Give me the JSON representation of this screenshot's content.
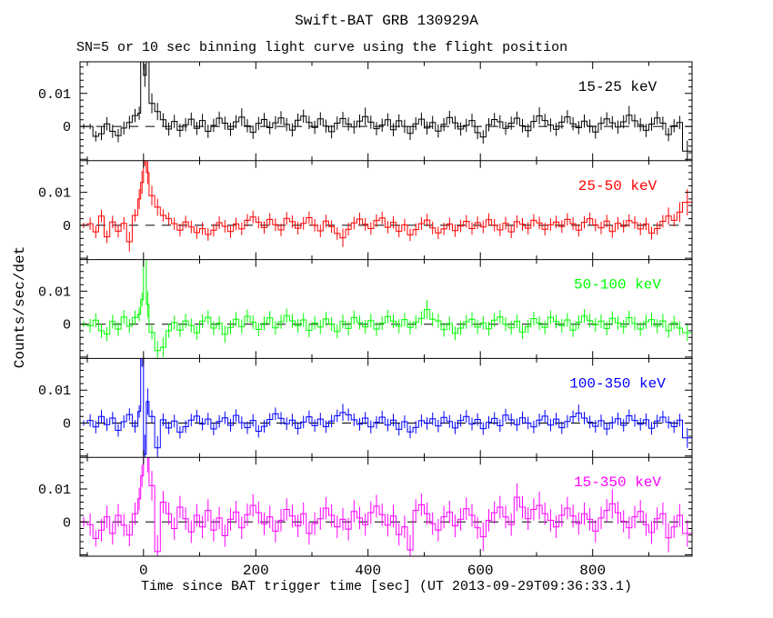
{
  "figure": {
    "title": "Swift-BAT GRB 130929A",
    "subtitle": "SN=5 or 10 sec binning light curve using the flight position",
    "background": "#ffffff",
    "frame_color": "#000000"
  },
  "chart_data": {
    "type": "line",
    "subtype": "step-histogram-with-errorbars",
    "title": "Swift-BAT GRB 130929A",
    "subtitle": "SN=5 or 10 sec binning light curve using the flight position",
    "xlabel": "Time since BAT trigger time [sec] (UT 2013-09-29T09:36:33.1)",
    "ylabel": "Counts/sec/det",
    "grid": false,
    "legend_position": "inside-top-right-of-each-panel",
    "xlim": [
      -113,
      977
    ],
    "ylim": [
      -0.0104,
      0.0196
    ],
    "x_major_ticks": [
      0,
      200,
      400,
      600,
      800
    ],
    "x_minor_step": 100,
    "y_labeled_ticks": [
      {
        "value": 0.01,
        "label": "0.01"
      },
      {
        "value": 0,
        "label": "0"
      }
    ],
    "y_minor_step": 0.002,
    "zero_line": {
      "color": "#000000",
      "dash": [
        10,
        8
      ]
    },
    "unit_scale": 0.001,
    "bin_edges": [
      -113,
      -100,
      -90,
      -80,
      -70,
      -60,
      -50,
      -40,
      -30,
      -20,
      -10,
      -5,
      0,
      5,
      10,
      20,
      30,
      40,
      50,
      60,
      70,
      80,
      90,
      100,
      110,
      120,
      130,
      140,
      150,
      160,
      170,
      180,
      190,
      200,
      210,
      220,
      230,
      240,
      250,
      260,
      270,
      280,
      290,
      300,
      310,
      320,
      330,
      340,
      350,
      360,
      370,
      380,
      390,
      400,
      410,
      420,
      430,
      440,
      450,
      460,
      470,
      480,
      490,
      500,
      510,
      520,
      530,
      540,
      550,
      560,
      570,
      580,
      590,
      600,
      610,
      620,
      630,
      640,
      650,
      660,
      670,
      680,
      690,
      700,
      710,
      720,
      730,
      740,
      750,
      760,
      770,
      780,
      790,
      800,
      810,
      820,
      830,
      840,
      850,
      860,
      870,
      880,
      890,
      900,
      910,
      920,
      930,
      940,
      950,
      960,
      977
    ],
    "series": [
      {
        "name": "15-25 keV",
        "color": "#000000",
        "err_default": 2.0,
        "err_overrides": {
          "0": 0.8,
          "1": 0.8,
          "2": 1.6,
          "11": 4,
          "12": 3.5,
          "13": 4,
          "14": 3,
          "15": 2.6,
          "30": 2.7,
          "52": 2.7,
          "83": 2.6,
          "99": 2.8,
          "109": 3.2
        },
        "values": [
          0,
          0,
          -3,
          -2.2,
          0.8,
          -1.5,
          -2.8,
          -0.5,
          1.2,
          3.3,
          4.0,
          26,
          15.5,
          27,
          7.0,
          4.5,
          2.0,
          -0.8,
          1.5,
          -1.2,
          0.5,
          2.2,
          -0.6,
          1.8,
          -1.5,
          0.3,
          2.5,
          1.0,
          -0.9,
          1.4,
          2.8,
          0.2,
          -1.8,
          0.9,
          2.1,
          -0.4,
          1.1,
          2.6,
          0.6,
          -1.1,
          1.9,
          3.1,
          1.2,
          -0.3,
          2.3,
          0.1,
          -1.6,
          1.0,
          2.4,
          0.7,
          -0.2,
          1.6,
          3.0,
          1.3,
          -0.7,
          0.4,
          2.0,
          -1.0,
          1.7,
          0.0,
          -2.1,
          0.8,
          2.2,
          -0.5,
          1.2,
          -1.4,
          0.6,
          2.7,
          1.1,
          -0.8,
          0.3,
          1.8,
          -1.9,
          -3.2,
          0.5,
          2.1,
          1.4,
          -0.6,
          1.0,
          2.5,
          0.2,
          -1.3,
          1.5,
          3.2,
          1.8,
          0.4,
          -0.9,
          1.3,
          2.9,
          0.8,
          -0.4,
          1.6,
          0.1,
          -1.7,
          0.9,
          2.3,
          1.1,
          -0.2,
          1.4,
          3.4,
          1.7,
          0.5,
          -1.2,
          0.7,
          2.6,
          1.0,
          -2.5,
          0.2,
          1.2,
          -7.5
        ]
      },
      {
        "name": "25-50 keV",
        "color": "#ff0000",
        "err_default": 1.9,
        "err_overrides": {
          "0": 0.8,
          "8": 3,
          "10": 3,
          "11": 3.5,
          "12": 4,
          "13": 3.5,
          "14": 3,
          "15": 2.6,
          "48": 2.8,
          "106": 2.6,
          "108": 3,
          "109": 4
        },
        "values": [
          0,
          0.5,
          -2,
          2.8,
          -3.5,
          1.0,
          -1.8,
          0.6,
          -5.0,
          3.0,
          8.0,
          13.0,
          22.0,
          16.0,
          9.0,
          5.5,
          3.0,
          2.0,
          0.5,
          -1.5,
          1.0,
          -0.5,
          -2.2,
          -1.0,
          -2.8,
          -1.5,
          0.8,
          -0.3,
          -1.9,
          0.4,
          -1.1,
          1.5,
          2.5,
          0.9,
          -0.7,
          1.8,
          0.2,
          -1.4,
          2.1,
          1.1,
          -0.9,
          0.6,
          2.3,
          0.0,
          -1.7,
          1.3,
          -0.4,
          -2.5,
          -3.8,
          -1.2,
          0.7,
          1.9,
          0.3,
          -1.0,
          1.4,
          2.2,
          -0.6,
          0.9,
          -1.8,
          0.1,
          -2.9,
          -1.3,
          0.5,
          1.6,
          -0.8,
          -2.3,
          -1.1,
          0.4,
          -1.6,
          -0.2,
          1.2,
          -1.0,
          0.8,
          -0.5,
          1.7,
          0.0,
          -1.4,
          0.6,
          -2.0,
          1.1,
          0.3,
          -0.9,
          1.5,
          0.7,
          -1.2,
          0.2,
          1.0,
          -0.4,
          1.8,
          0.5,
          -1.5,
          0.9,
          2.0,
          0.1,
          -0.8,
          1.3,
          -1.9,
          0.6,
          -0.3,
          1.4,
          0.8,
          -1.1,
          0.4,
          -2.4,
          -1.0,
          1.2,
          2.8,
          1.5,
          4.0,
          7.0
        ]
      },
      {
        "name": "50-100 keV",
        "color": "#00ff00",
        "err_default": 2.1,
        "err_overrides": {
          "0": 0.9,
          "12": 5,
          "13": 4,
          "15": 3,
          "16": 3,
          "27": 2.6,
          "63": 2.9,
          "109": 2.5
        },
        "values": [
          0,
          -0.5,
          1.2,
          -2.0,
          -3.0,
          0.8,
          -1.5,
          2.2,
          -0.6,
          2.0,
          3.0,
          7.5,
          34.0,
          6.0,
          -2.5,
          -8.0,
          -7.0,
          -2.0,
          0.5,
          -1.8,
          1.0,
          -0.4,
          -2.6,
          0.9,
          2.1,
          -1.2,
          0.3,
          -3.1,
          -1.0,
          1.5,
          -0.7,
          2.4,
          0.6,
          -1.6,
          0.2,
          1.9,
          -1.1,
          0.7,
          2.6,
          1.0,
          -0.5,
          1.3,
          -1.9,
          0.4,
          -0.9,
          1.6,
          0.0,
          -2.2,
          0.8,
          -1.3,
          2.0,
          0.5,
          -0.8,
          1.1,
          -1.5,
          0.3,
          2.3,
          0.9,
          -0.6,
          1.4,
          -1.0,
          0.6,
          1.8,
          4.5,
          1.5,
          1.0,
          -1.7,
          0.2,
          -2.8,
          -1.2,
          0.7,
          1.5,
          -0.9,
          0.4,
          -1.4,
          1.2,
          2.2,
          0.0,
          -1.1,
          0.9,
          -2.4,
          -0.7,
          1.7,
          0.3,
          -1.0,
          2.1,
          0.8,
          -0.5,
          1.3,
          -1.8,
          0.6,
          2.5,
          1.1,
          -0.2,
          0.9,
          -1.3,
          1.8,
          0.4,
          -0.8,
          2.0,
          0.2,
          -1.5,
          0.7,
          1.4,
          -0.6,
          1.0,
          -2.0,
          0.5,
          -1.2,
          -2.6
        ]
      },
      {
        "name": "100-350 keV",
        "color": "#0000ff",
        "err_default": 1.9,
        "err_overrides": {
          "0": 0.8,
          "11": 8,
          "12": 6,
          "13": 4,
          "15": 3.5,
          "48": 2.6,
          "90": 2.6,
          "109": 3
        },
        "values": [
          0,
          0.8,
          -1.2,
          2.0,
          -0.5,
          1.5,
          -2.2,
          0.4,
          2.6,
          -1.0,
          3.5,
          25.0,
          -9.5,
          6.5,
          2.0,
          -7.5,
          1.0,
          -1.5,
          0.6,
          -2.8,
          -1.1,
          0.9,
          2.1,
          -0.3,
          1.2,
          -1.8,
          0.5,
          1.6,
          -0.7,
          2.3,
          0.1,
          -1.4,
          0.8,
          -2.5,
          -1.0,
          1.1,
          2.8,
          1.4,
          -0.2,
          0.9,
          -1.6,
          0.3,
          1.9,
          -0.8,
          1.2,
          -1.1,
          0.6,
          2.2,
          3.2,
          2.5,
          1.0,
          -0.4,
          1.5,
          -1.2,
          0.2,
          1.8,
          -0.6,
          0.9,
          -1.9,
          0.4,
          -2.7,
          -1.3,
          0.7,
          -0.1,
          1.3,
          -0.9,
          1.7,
          0.5,
          -1.5,
          0.8,
          2.0,
          -0.3,
          1.1,
          -1.7,
          0.2,
          1.4,
          -0.8,
          2.4,
          1.0,
          -0.5,
          1.6,
          0.0,
          -1.2,
          0.9,
          2.1,
          -0.6,
          1.2,
          -1.4,
          0.5,
          1.9,
          3.0,
          1.5,
          0.3,
          -1.0,
          0.7,
          -1.8,
          0.1,
          1.3,
          -0.7,
          2.2,
          0.8,
          -0.4,
          1.0,
          -1.6,
          0.6,
          1.8,
          0.2,
          -1.1,
          0.9,
          -4.5
        ]
      },
      {
        "name": "15-350 keV",
        "color": "#ff00ff",
        "err_default": 3.4,
        "err_overrides": {
          "0": 1.5,
          "2": 2.5,
          "12": 5,
          "13": 5,
          "14": 4.5,
          "15": 5,
          "60": 4.5,
          "73": 4.3,
          "79": 4.2,
          "83": 4.2,
          "96": 4.4,
          "106": 4.4,
          "109": 4
        },
        "values": [
          0,
          -0.8,
          -5.0,
          -2.5,
          1.5,
          -3.5,
          2.0,
          -1.0,
          -4.0,
          2.5,
          7.0,
          14.0,
          28.0,
          20.0,
          11.0,
          -9.0,
          6.0,
          2.5,
          -2.0,
          4.5,
          1.0,
          -3.0,
          2.0,
          -1.5,
          3.5,
          -2.5,
          1.2,
          -4.2,
          0.8,
          3.0,
          -1.8,
          2.2,
          5.0,
          2.8,
          -0.6,
          1.5,
          -2.8,
          0.5,
          3.8,
          1.8,
          -1.2,
          2.5,
          -3.5,
          -0.5,
          1.0,
          4.2,
          2.0,
          -1.5,
          0.8,
          -2.2,
          3.2,
          1.2,
          -0.8,
          2.8,
          4.8,
          2.2,
          -1.0,
          1.8,
          -3.8,
          -1.5,
          -8.5,
          3.5,
          5.2,
          2.5,
          -0.5,
          -2.5,
          1.5,
          3.0,
          -1.2,
          0.8,
          4.0,
          2.0,
          -1.8,
          -4.5,
          0.5,
          2.8,
          4.5,
          1.5,
          -0.8,
          7.5,
          4.5,
          1.0,
          3.8,
          5.0,
          2.5,
          0.5,
          -1.5,
          2.0,
          4.2,
          1.8,
          -0.5,
          2.5,
          0.8,
          -2.8,
          1.2,
          3.5,
          5.5,
          2.8,
          0.2,
          -1.8,
          1.5,
          3.2,
          -0.8,
          -3.2,
          1.0,
          2.5,
          -4.8,
          -1.5,
          2.0,
          -3.5
        ]
      }
    ]
  }
}
